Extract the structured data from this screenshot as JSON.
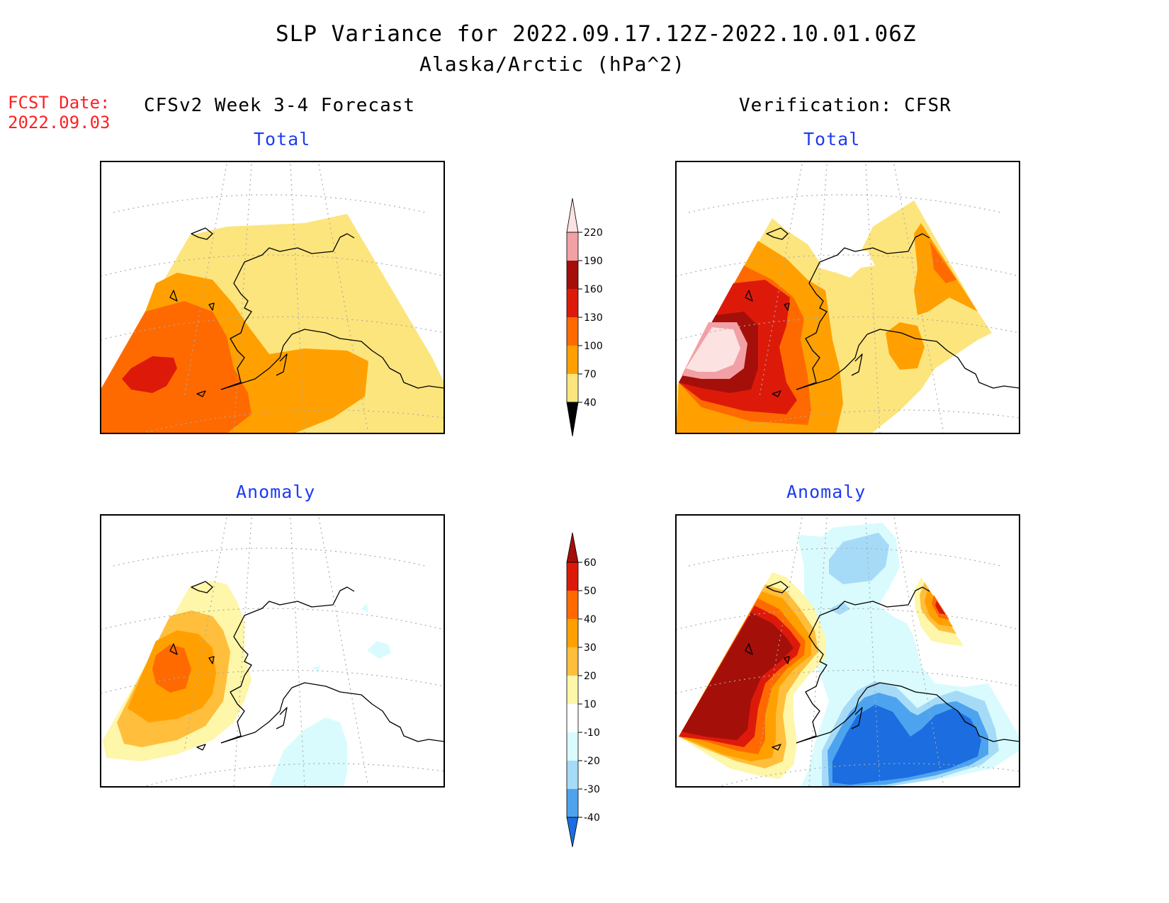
{
  "header": {
    "title": "SLP Variance for 2022.09.17.12Z-2022.10.01.06Z",
    "subtitle": "Alaska/Arctic (hPa^2)",
    "fcst_label": "FCST Date:",
    "fcst_date": "2022.09.03"
  },
  "columns": {
    "left": "CFSv2 Week 3-4 Forecast",
    "right": "Verification: CFSR"
  },
  "panels": {
    "forecast_total": "Total",
    "verification_total": "Total",
    "forecast_anomaly": "Anomaly",
    "verification_anomaly": "Anomaly"
  },
  "colorbars": {
    "total": {
      "levels": [
        "220",
        "190",
        "160",
        "130",
        "100",
        "70",
        "40"
      ],
      "colors": [
        "#fde2e2",
        "#f2a0a5",
        "#a50f0a",
        "#dd1a0a",
        "#ff6a00",
        "#ffa000",
        "#fde57d"
      ]
    },
    "anomaly": {
      "levels": [
        "60",
        "50",
        "40",
        "30",
        "20",
        "10",
        "-10",
        "-20",
        "-30",
        "-40"
      ],
      "colors": [
        "#a50f0a",
        "#dd1a0a",
        "#ff6a00",
        "#ffa000",
        "#ffbe3c",
        "#fef6a8",
        "#ffffff",
        "#d9fbfe",
        "#a6dbf8",
        "#4da3ee",
        "#1b6de0"
      ]
    }
  },
  "colors": {
    "title_blue": "#1d3cf0",
    "fcst_red": "#ff2020"
  }
}
